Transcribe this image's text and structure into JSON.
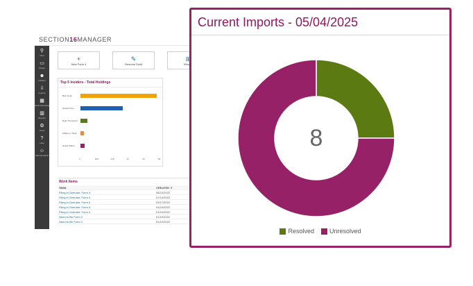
{
  "app": {
    "logo_prefix": "SECTION",
    "logo_number": "16",
    "logo_suffix": "MANAGER",
    "nav": [
      {
        "label": "View",
        "icon": "binoculars-icon",
        "glyph": "⚲"
      },
      {
        "label": "Filings",
        "icon": "folder-icon",
        "glyph": "▭"
      },
      {
        "label": "Insiders",
        "icon": "users-icon",
        "glyph": "☻"
      },
      {
        "label": "Imports",
        "icon": "import-icon",
        "glyph": "⇩"
      },
      {
        "label": "Stock Information",
        "icon": "building-icon",
        "glyph": "▦"
      },
      {
        "label": "Reports",
        "icon": "chart-icon",
        "glyph": "▥"
      },
      {
        "label": "Tools",
        "icon": "gear-icon",
        "glyph": "⚙"
      },
      {
        "label": "Help",
        "icon": "help-icon",
        "glyph": "?"
      },
      {
        "label": "Internal Admin",
        "icon": "admin-icon",
        "glyph": "☺"
      }
    ],
    "quick_buttons": [
      {
        "label": "New Form 4",
        "glyph": "+"
      },
      {
        "label": "Resume Draft",
        "glyph": "✎"
      },
      {
        "label": "View Tr",
        "glyph": "⊞"
      }
    ],
    "holdings_title": "Top 5 Insiders - Total Holdings",
    "holdings_chart": {
      "type": "bar",
      "categories": [
        "Bob Jones",
        "Harold Price",
        "Ryan Thompson",
        "William C. Beal",
        "Nicole Walsh"
      ],
      "values": [
        29,
        16,
        2.5,
        1.2,
        1.5
      ],
      "colors": [
        "#f0a30a",
        "#1d5fb0",
        "#5a7a1a",
        "#e08b4a",
        "#962167"
      ],
      "xticks": [
        "0",
        "200",
        "215",
        "15",
        "20",
        "25"
      ],
      "xmax": 30
    },
    "work_items": {
      "title": "Work Items",
      "columns": [
        "TASK",
        "CREATED ▼"
      ],
      "rows": [
        [
          "Filing in Overdue: Form 4",
          "08/22/2022"
        ],
        [
          "Filing in Overdue: Form 4",
          "07/14/2022"
        ],
        [
          "Filing in Overdue: Form 4",
          "03/17/2022"
        ],
        [
          "Filing in Overdue: Form 4",
          "01/24/2022"
        ],
        [
          "Filing in Overdue: Form 4",
          "01/24/2022"
        ],
        [
          "Need to file Form 3",
          "01/19/2022"
        ],
        [
          "Need to file Form 3",
          "01/19/2022"
        ]
      ]
    }
  },
  "card": {
    "title": "Current Imports - 05/04/2025",
    "total": "8",
    "chart_data": {
      "type": "pie",
      "title": "Current Imports - 05/04/2025",
      "categories": [
        "Resolved",
        "Unresolved"
      ],
      "values": [
        2,
        6
      ],
      "colors": [
        "#5c7a12",
        "#962167"
      ],
      "legend_position": "bottom",
      "center_label": "8"
    },
    "legend": [
      {
        "label": "Resolved",
        "color": "#5c7a12"
      },
      {
        "label": "Unresolved",
        "color": "#962167"
      }
    ]
  }
}
